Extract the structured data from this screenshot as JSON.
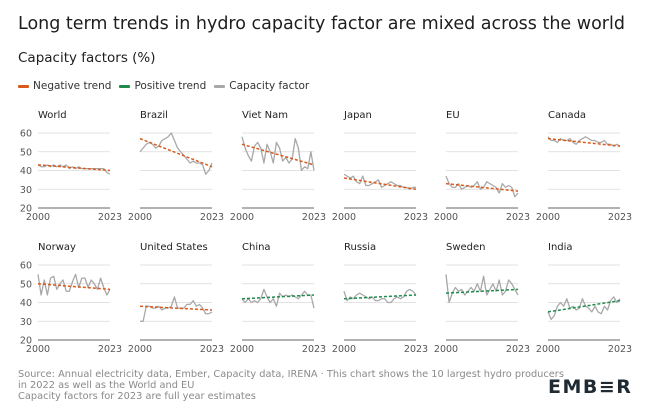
{
  "title": "Long term trends in hydro capacity factor are mixed across the world",
  "subtitle": "Capacity factors (%)",
  "legend": {
    "negative": "Negative trend",
    "positive": "Positive trend",
    "capacity": "Capacity factor"
  },
  "colors": {
    "negative": "#d95a1c",
    "positive": "#1e8a4c",
    "capacity": "#a8a8a8",
    "grid": "#d9d9d9",
    "axis": "#555555"
  },
  "footer": {
    "line1": "Source: Annual electricity data, Ember, Capacity data, IRENA · This chart shows the 10 largest hydro producers",
    "line2": "in 2022 as well as the World and EU",
    "line3": "Capacity factors for 2023 are full year estimates"
  },
  "logo": "EMB≡R",
  "chart_data": [
    {
      "type": "line",
      "title": "World",
      "x_start": 2000,
      "x_end": 2023,
      "ylim": [
        20,
        60
      ],
      "yticks": [
        20,
        30,
        40,
        50,
        60
      ],
      "trend": "negative",
      "trend_line": [
        43,
        40
      ],
      "values": [
        43,
        42,
        42,
        43,
        42,
        43,
        42,
        43,
        42,
        43,
        41,
        42,
        41,
        42,
        41,
        41,
        41,
        41,
        41,
        41,
        41,
        41,
        39,
        38
      ]
    },
    {
      "type": "line",
      "title": "Brazil",
      "x_start": 2000,
      "x_end": 2023,
      "ylim": [
        20,
        60
      ],
      "yticks": [
        20,
        30,
        40,
        50,
        60
      ],
      "trend": "negative",
      "trend_line": [
        57,
        42
      ],
      "values": [
        50,
        52,
        54,
        55,
        54,
        52,
        53,
        56,
        57,
        58,
        60,
        56,
        52,
        50,
        48,
        46,
        44,
        45,
        44,
        44,
        43,
        38,
        40,
        44
      ]
    },
    {
      "type": "line",
      "title": "Viet Nam",
      "x_start": 2000,
      "x_end": 2023,
      "ylim": [
        20,
        60
      ],
      "yticks": [
        20,
        30,
        40,
        50,
        60
      ],
      "trend": "negative",
      "trend_line": [
        54,
        43
      ],
      "values": [
        58,
        52,
        48,
        45,
        53,
        55,
        52,
        44,
        54,
        50,
        44,
        55,
        52,
        45,
        47,
        44,
        46,
        57,
        52,
        40,
        42,
        41,
        50,
        40
      ]
    },
    {
      "type": "line",
      "title": "Japan",
      "x_start": 2000,
      "x_end": 2023,
      "ylim": [
        20,
        60
      ],
      "yticks": [
        20,
        30,
        40,
        50,
        60
      ],
      "trend": "negative",
      "trend_line": [
        36,
        30
      ],
      "values": [
        38,
        37,
        36,
        37,
        34,
        33,
        37,
        32,
        32,
        33,
        34,
        35,
        31,
        32,
        33,
        34,
        33,
        32,
        32,
        31,
        31,
        30,
        31,
        31
      ]
    },
    {
      "type": "line",
      "title": "EU",
      "x_start": 2000,
      "x_end": 2023,
      "ylim": [
        20,
        60
      ],
      "yticks": [
        20,
        30,
        40,
        50,
        60
      ],
      "trend": "negative",
      "trend_line": [
        33,
        29
      ],
      "values": [
        37,
        33,
        31,
        31,
        33,
        30,
        31,
        32,
        31,
        32,
        34,
        30,
        31,
        34,
        33,
        32,
        31,
        28,
        33,
        31,
        32,
        31,
        26,
        28
      ]
    },
    {
      "type": "line",
      "title": "Canada",
      "x_start": 2000,
      "x_end": 2023,
      "ylim": [
        20,
        60
      ],
      "yticks": [
        20,
        30,
        40,
        50,
        60
      ],
      "trend": "negative",
      "trend_line": [
        57,
        53
      ],
      "values": [
        58,
        56,
        56,
        55,
        57,
        56,
        56,
        57,
        55,
        54,
        56,
        57,
        58,
        57,
        56,
        56,
        55,
        55,
        56,
        54,
        54,
        53,
        54,
        53
      ]
    },
    {
      "type": "line",
      "title": "Norway",
      "x_start": 2000,
      "x_end": 2023,
      "ylim": [
        20,
        60
      ],
      "yticks": [
        20,
        30,
        40,
        50,
        60
      ],
      "trend": "negative",
      "trend_line": [
        50,
        47
      ],
      "values": [
        55,
        44,
        52,
        44,
        53,
        54,
        47,
        50,
        52,
        46,
        46,
        51,
        55,
        48,
        53,
        53,
        48,
        52,
        50,
        47,
        53,
        48,
        44,
        47
      ]
    },
    {
      "type": "line",
      "title": "United States",
      "x_start": 2000,
      "x_end": 2023,
      "ylim": [
        20,
        60
      ],
      "yticks": [
        20,
        30,
        40,
        50,
        60
      ],
      "trend": "negative",
      "trend_line": [
        38,
        36
      ],
      "values": [
        30,
        30,
        38,
        38,
        37,
        37,
        38,
        36,
        37,
        37,
        38,
        43,
        37,
        37,
        37,
        39,
        39,
        41,
        38,
        39,
        37,
        34,
        34,
        35
      ]
    },
    {
      "type": "line",
      "title": "China",
      "x_start": 2000,
      "x_end": 2023,
      "ylim": [
        20,
        60
      ],
      "yticks": [
        20,
        30,
        40,
        50,
        60
      ],
      "trend": "positive",
      "trend_line": [
        42,
        44
      ],
      "values": [
        42,
        40,
        42,
        40,
        41,
        40,
        42,
        47,
        43,
        40,
        42,
        38,
        45,
        43,
        44,
        43,
        44,
        43,
        42,
        44,
        46,
        44,
        44,
        37
      ]
    },
    {
      "type": "line",
      "title": "Russia",
      "x_start": 2000,
      "x_end": 2023,
      "ylim": [
        20,
        60
      ],
      "yticks": [
        20,
        30,
        40,
        50,
        60
      ],
      "trend": "positive",
      "trend_line": [
        42,
        44
      ],
      "values": [
        46,
        41,
        43,
        42,
        44,
        45,
        44,
        43,
        42,
        43,
        41,
        41,
        42,
        42,
        40,
        40,
        42,
        43,
        42,
        43,
        46,
        47,
        46,
        44
      ]
    },
    {
      "type": "line",
      "title": "Sweden",
      "x_start": 2000,
      "x_end": 2023,
      "ylim": [
        20,
        60
      ],
      "yticks": [
        20,
        30,
        40,
        50,
        60
      ],
      "trend": "positive",
      "trend_line": [
        45,
        47
      ],
      "values": [
        55,
        40,
        45,
        48,
        46,
        47,
        44,
        46,
        48,
        46,
        50,
        46,
        54,
        44,
        47,
        50,
        46,
        52,
        44,
        46,
        52,
        50,
        47,
        44
      ]
    },
    {
      "type": "line",
      "title": "India",
      "x_start": 2000,
      "x_end": 2023,
      "ylim": [
        20,
        60
      ],
      "yticks": [
        20,
        30,
        40,
        50,
        60
      ],
      "trend": "positive",
      "trend_line": [
        35,
        41
      ],
      "values": [
        35,
        31,
        33,
        38,
        40,
        38,
        42,
        37,
        38,
        36,
        37,
        42,
        38,
        37,
        35,
        38,
        35,
        34,
        38,
        36,
        41,
        43,
        40,
        42
      ]
    }
  ]
}
